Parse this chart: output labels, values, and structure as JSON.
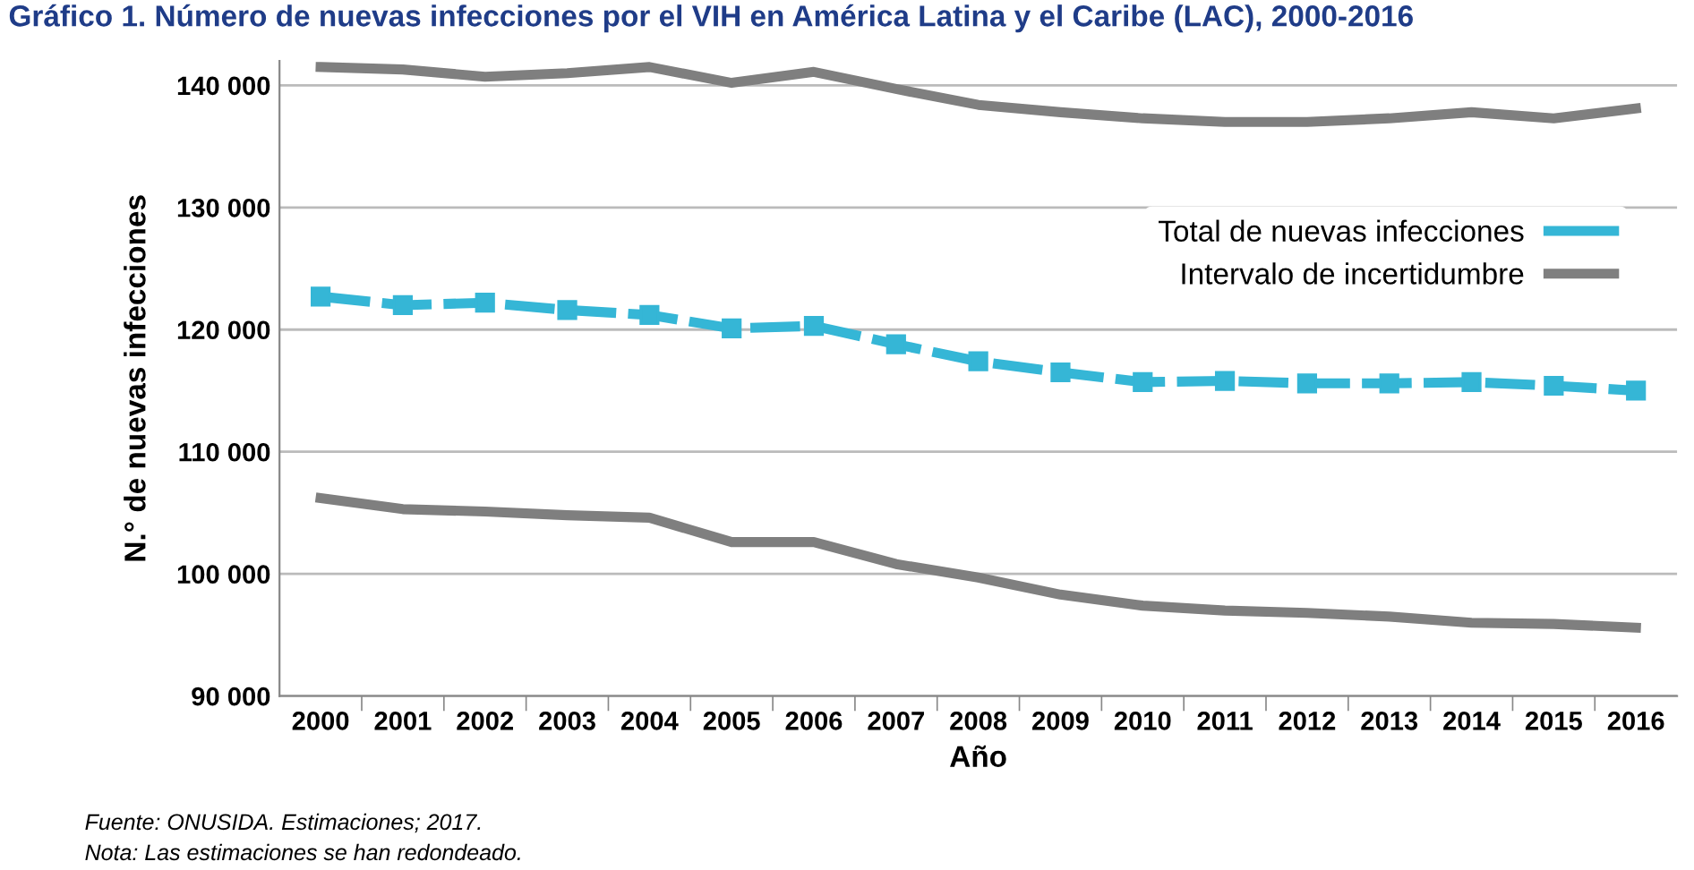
{
  "chart_data": {
    "type": "line",
    "title": "Gráfico 1. Número de nuevas infecciones por el VIH en América Latina y el Caribe (LAC), 2000-2016",
    "xlabel": "Año",
    "ylabel": "N.° de nuevas infecciones",
    "categories": [
      "2000",
      "2001",
      "2002",
      "2003",
      "2004",
      "2005",
      "2006",
      "2007",
      "2008",
      "2009",
      "2010",
      "2011",
      "2012",
      "2013",
      "2014",
      "2015",
      "2016"
    ],
    "series": [
      {
        "name": "Total de nuevas infecciones",
        "color": "#35b6d6",
        "marker": "square",
        "line_style": "dashed",
        "values": [
          122700,
          122000,
          122200,
          121600,
          121200,
          120100,
          120300,
          118800,
          117400,
          116500,
          115700,
          115800,
          115600,
          115600,
          115700,
          115400,
          115000
        ]
      },
      {
        "name": "Intervalo de incertidumbre",
        "color": "#7f7f7f",
        "marker": "none",
        "line_style": "solid",
        "values": [
          141500,
          141300,
          140700,
          141000,
          141500,
          140200,
          141100,
          139700,
          138400,
          137800,
          137300,
          137000,
          137000,
          137300,
          137800,
          137300,
          138100
        ]
      },
      {
        "color": "#7f7f7f",
        "marker": "none",
        "line_style": "solid",
        "values": [
          106200,
          105300,
          105100,
          104800,
          104600,
          102600,
          102600,
          100800,
          99700,
          98300,
          97400,
          97000,
          96800,
          96500,
          96000,
          95900,
          95600
        ]
      }
    ],
    "ylim": [
      90000,
      142000
    ],
    "yticks": [
      {
        "value": 90000,
        "label": "90 000"
      },
      {
        "value": 100000,
        "label": "100 000"
      },
      {
        "value": 110000,
        "label": "110 000"
      },
      {
        "value": 120000,
        "label": "120 000"
      },
      {
        "value": 130000,
        "label": "130 000"
      },
      {
        "value": 140000,
        "label": "140 000"
      }
    ],
    "grid": "y",
    "legend": "top right",
    "annotations": [
      "Fuente: ONUSIDA. Estimaciones; 2017.",
      "Nota: Las estimaciones se han redondeado."
    ]
  }
}
